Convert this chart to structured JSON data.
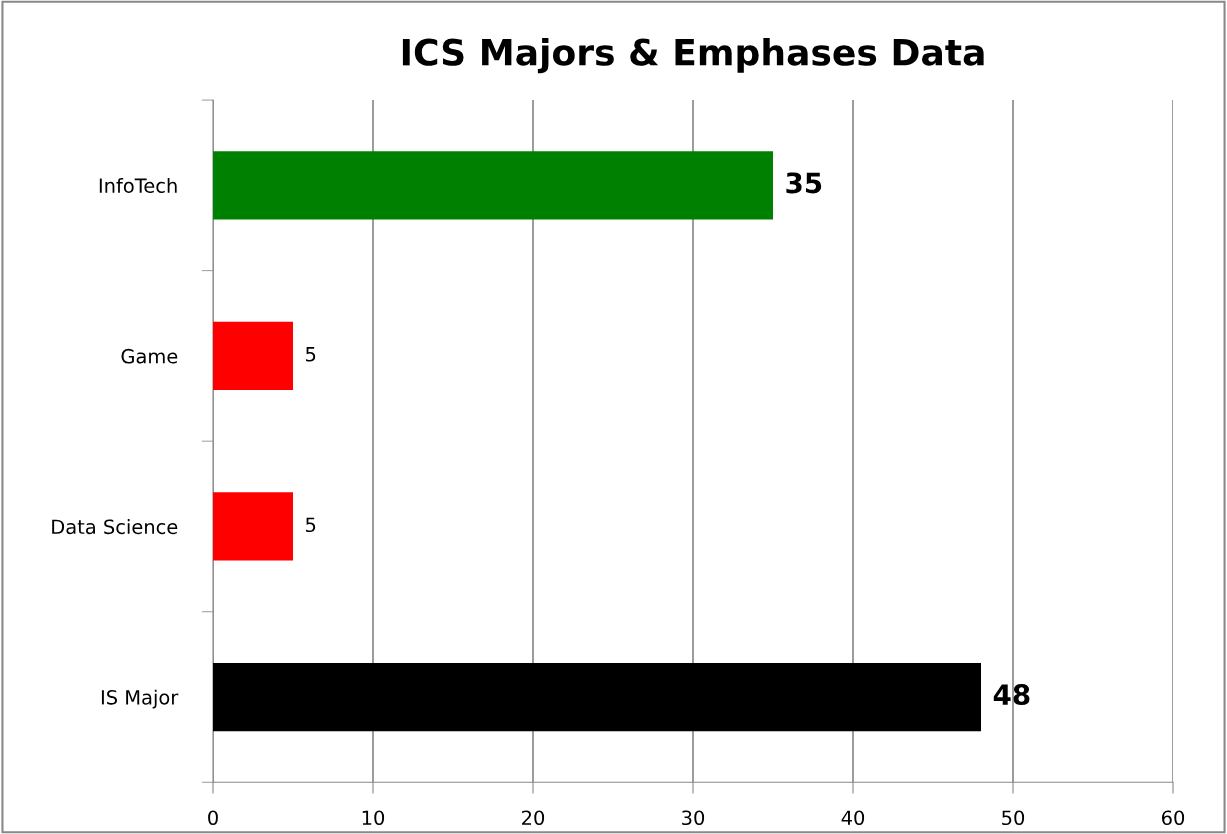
{
  "chart_data": {
    "type": "bar",
    "orientation": "horizontal",
    "title": "ICS Majors & Emphases Data",
    "categories": [
      "InfoTech",
      "Game",
      "Data Science",
      "IS Major"
    ],
    "values": [
      35,
      5,
      5,
      48
    ],
    "colors": [
      "#008000",
      "#ff0000",
      "#ff0000",
      "#000000"
    ],
    "xlim": [
      0,
      60
    ],
    "xticks": [
      0,
      10,
      20,
      30,
      40,
      50,
      60
    ],
    "grid": "x",
    "data_labels": true
  }
}
